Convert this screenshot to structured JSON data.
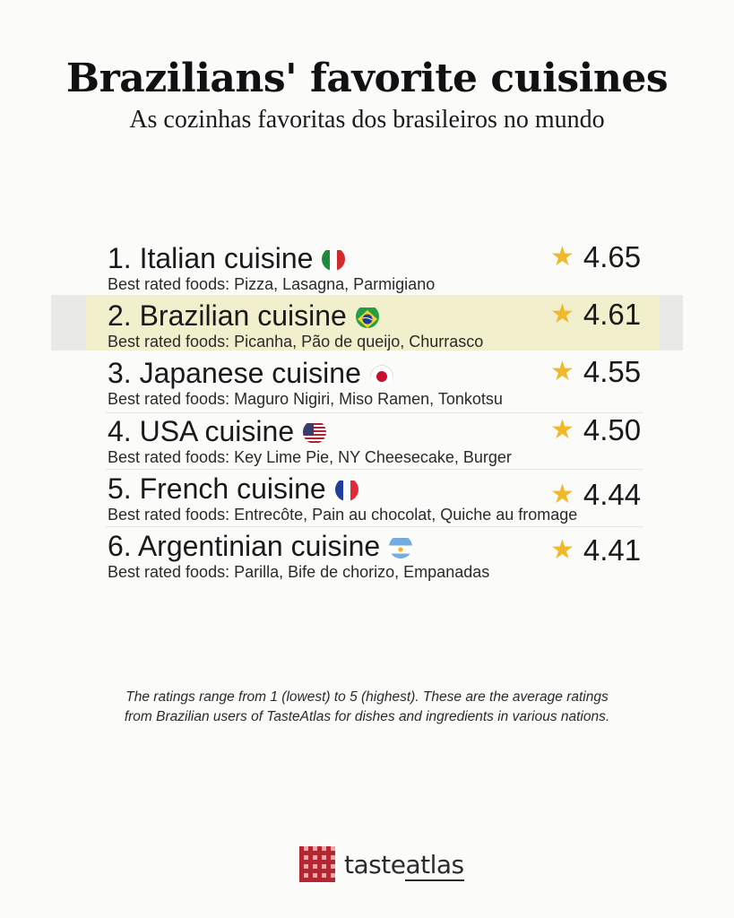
{
  "header": {
    "title": "Brazilians' favorite cuisines",
    "subtitle": "As cozinhas favoritas dos brasileiros no mundo"
  },
  "foods_prefix": "Best rated foods: ",
  "cuisines": [
    {
      "rank_name": "1. Italian cuisine",
      "flag": "italy-flag",
      "foods": "Best rated foods: Pizza, Lasagna, Parmigiano",
      "rating": "4.65"
    },
    {
      "rank_name": "2. Brazilian cuisine",
      "flag": "brazil-flag",
      "foods": "Best rated foods: Picanha, Pão de queijo, Churrasco",
      "rating": "4.61"
    },
    {
      "rank_name": "3. Japanese cuisine",
      "flag": "japan-flag",
      "foods": "Best rated foods: Maguro Nigiri, Miso Ramen, Tonkotsu",
      "rating": "4.55"
    },
    {
      "rank_name": "4. USA cuisine",
      "flag": "usa-flag",
      "foods": "Best rated foods: Key Lime Pie, NY Cheesecake, Burger",
      "rating": "4.50"
    },
    {
      "rank_name": "5. French cuisine",
      "flag": "france-flag",
      "foods": "Best rated foods: Entrecôte, Pain au chocolat, Quiche au fromage",
      "rating": "4.44"
    },
    {
      "rank_name": "6. Argentinian cuisine",
      "flag": "argentina-flag",
      "foods": "Best rated foods: Parilla, Bife de chorizo, Empanadas",
      "rating": "4.41"
    }
  ],
  "colors": {
    "star": "#f1b92a",
    "highlight": "#f3f0c8",
    "brand": "#b52730"
  },
  "footnote": {
    "line1": "The ratings range from 1 (lowest) to 5 (highest). These are the average ratings",
    "line2": "from Brazilian users of TasteAtlas for dishes and ingredients in various nations."
  },
  "logo": {
    "text_a": "taste",
    "text_b": "atlas"
  }
}
